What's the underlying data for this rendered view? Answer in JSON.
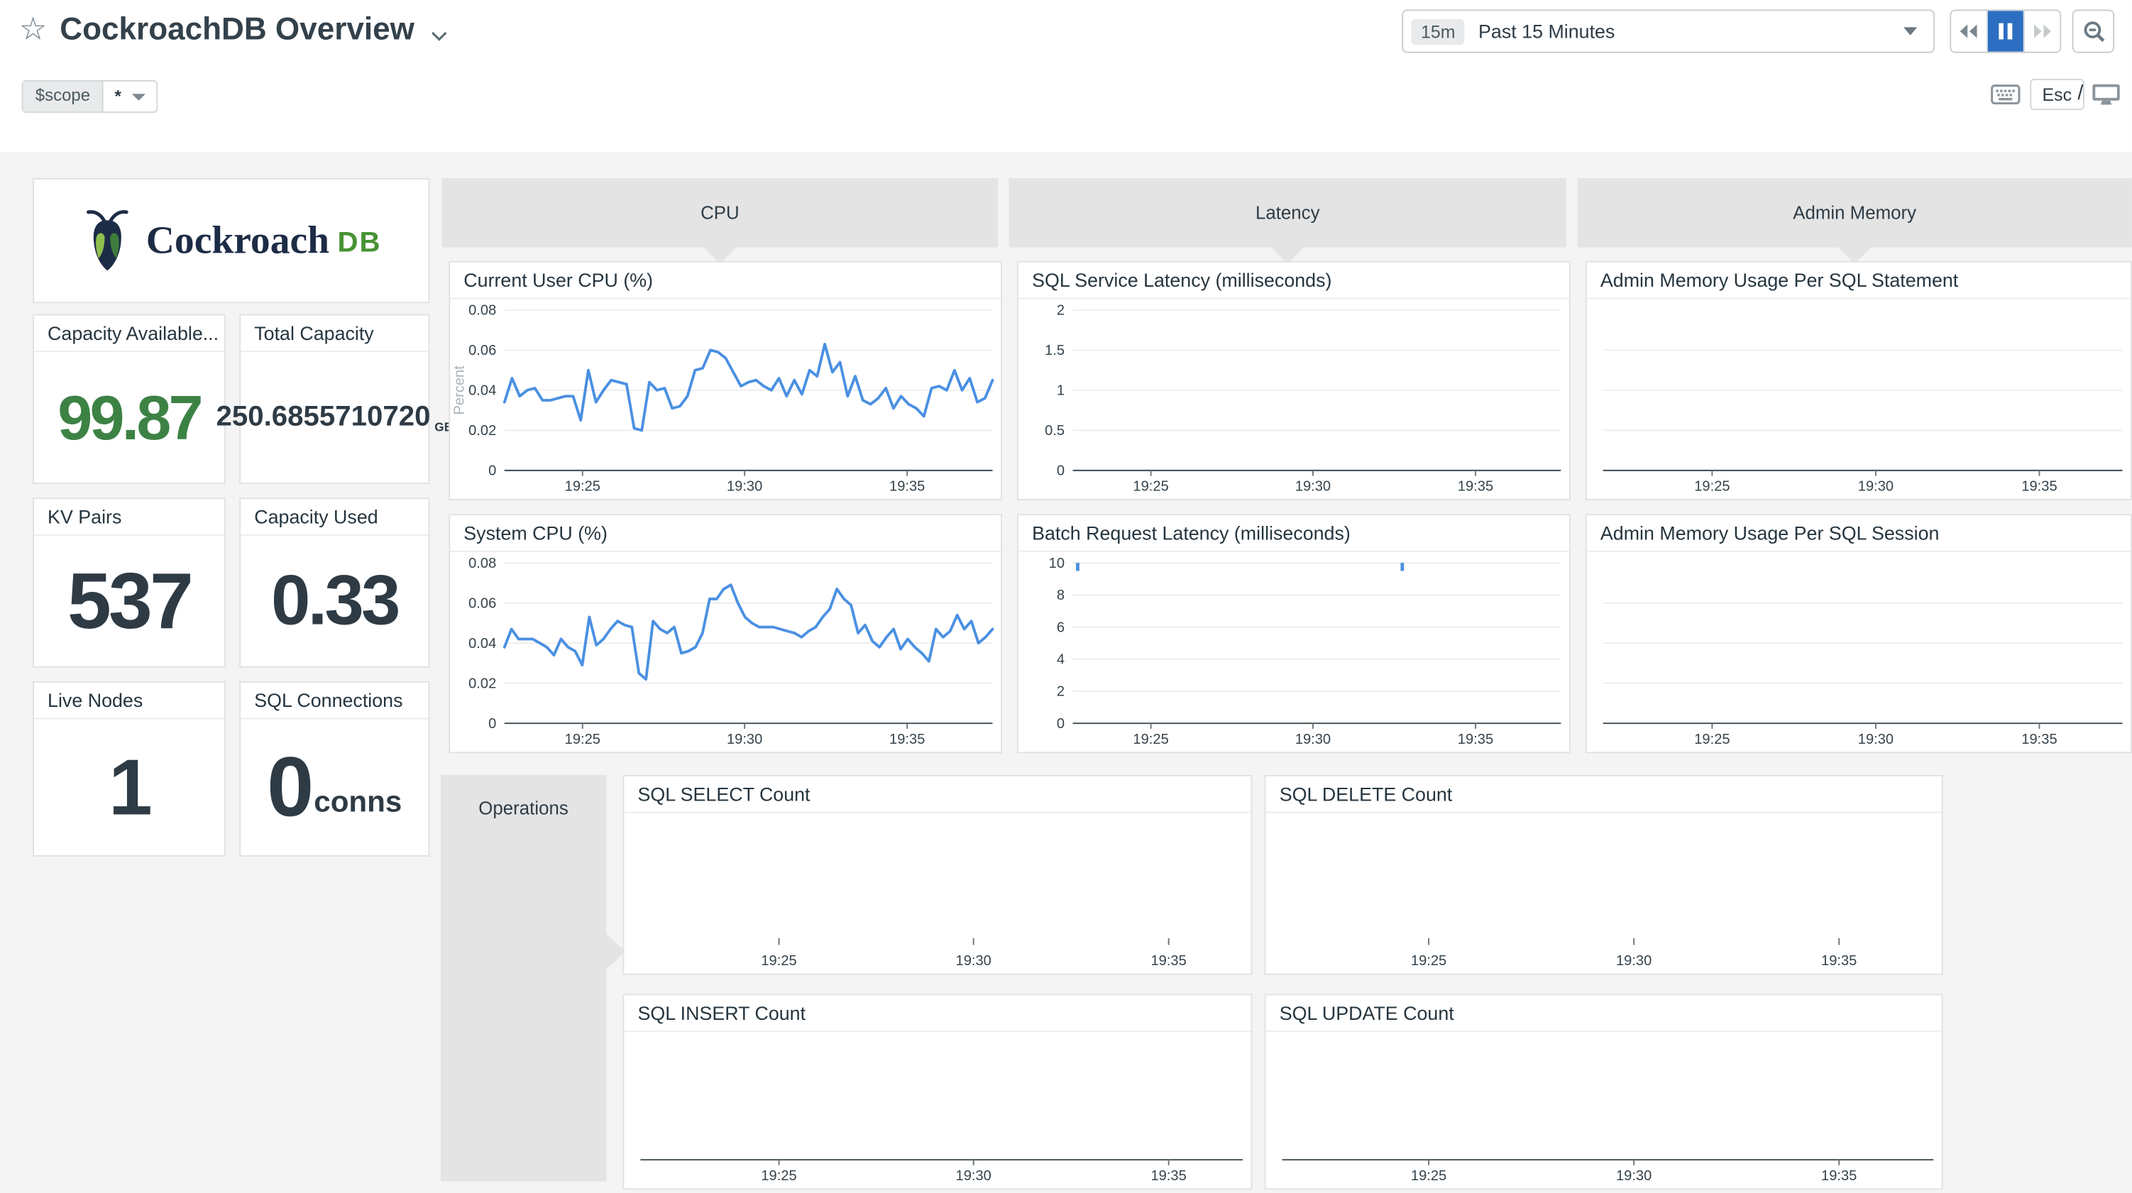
{
  "header": {
    "title": "CockroachDB Overview",
    "time_badge": "15m",
    "time_label": "Past 15 Minutes",
    "esc_key": "Esc",
    "slash": "/"
  },
  "scope": {
    "name": "$scope",
    "value": "*"
  },
  "logo": {
    "word": "Cockroach",
    "db": "DB"
  },
  "groups": {
    "cpu": "CPU",
    "latency": "Latency",
    "admin_memory": "Admin Memory",
    "operations": "Operations"
  },
  "cards": {
    "capacity_available": {
      "title": "Capacity Available...",
      "value": "99.87"
    },
    "total_capacity": {
      "title": "Total Capacity",
      "value": "250.6855710720",
      "unit": "GB"
    },
    "kv_pairs": {
      "title": "KV Pairs",
      "value": "537"
    },
    "capacity_used": {
      "title": "Capacity Used",
      "value": "0.33"
    },
    "live_nodes": {
      "title": "Live Nodes",
      "value": "1"
    },
    "sql_connections": {
      "title": "SQL Connections",
      "value": "0",
      "unit": "conns"
    }
  },
  "colors": {
    "line_blue": "#4a90e2",
    "accent_green": "#3d8245",
    "pause_blue": "#2c6fc2"
  },
  "chart_data": {
    "current_user_cpu": {
      "type": "line",
      "title": "Current User CPU (%)",
      "ylabel": "Percent",
      "ymax": 0.08,
      "yticks": [
        "0.08",
        "0.06",
        "0.04",
        "0.02",
        "0"
      ],
      "xticks": [
        "19:25",
        "19:30",
        "19:35"
      ],
      "xfracs": [
        0.16,
        0.492,
        0.825
      ],
      "baseline": true,
      "color": "#4a90e2",
      "values": [
        0.034,
        0.046,
        0.037,
        0.04,
        0.041,
        0.035,
        0.035,
        0.036,
        0.037,
        0.037,
        0.025,
        0.05,
        0.034,
        0.04,
        0.045,
        0.044,
        0.043,
        0.021,
        0.02,
        0.044,
        0.04,
        0.041,
        0.031,
        0.032,
        0.037,
        0.05,
        0.051,
        0.06,
        0.059,
        0.056,
        0.049,
        0.042,
        0.044,
        0.045,
        0.042,
        0.04,
        0.046,
        0.037,
        0.045,
        0.038,
        0.05,
        0.047,
        0.063,
        0.049,
        0.054,
        0.037,
        0.047,
        0.035,
        0.033,
        0.036,
        0.041,
        0.031,
        0.037,
        0.033,
        0.031,
        0.027,
        0.041,
        0.042,
        0.04,
        0.05,
        0.04,
        0.046,
        0.034,
        0.036,
        0.045
      ]
    },
    "system_cpu": {
      "type": "line",
      "title": "System CPU (%)",
      "ymax": 0.08,
      "yticks": [
        "0.08",
        "0.06",
        "0.04",
        "0.02",
        "0"
      ],
      "xticks": [
        "19:25",
        "19:30",
        "19:35"
      ],
      "xfracs": [
        0.16,
        0.492,
        0.825
      ],
      "baseline": true,
      "color": "#4a90e2",
      "values": [
        0.038,
        0.047,
        0.042,
        0.042,
        0.042,
        0.04,
        0.038,
        0.034,
        0.042,
        0.038,
        0.036,
        0.029,
        0.053,
        0.039,
        0.042,
        0.047,
        0.051,
        0.049,
        0.048,
        0.025,
        0.022,
        0.051,
        0.047,
        0.045,
        0.048,
        0.035,
        0.036,
        0.038,
        0.045,
        0.062,
        0.062,
        0.067,
        0.069,
        0.06,
        0.053,
        0.05,
        0.048,
        0.048,
        0.048,
        0.047,
        0.046,
        0.045,
        0.043,
        0.046,
        0.048,
        0.053,
        0.057,
        0.067,
        0.062,
        0.059,
        0.045,
        0.049,
        0.041,
        0.038,
        0.043,
        0.047,
        0.037,
        0.042,
        0.038,
        0.035,
        0.031,
        0.047,
        0.043,
        0.046,
        0.054,
        0.047,
        0.051,
        0.04,
        0.043,
        0.047
      ]
    },
    "sql_service_latency": {
      "type": "line",
      "title": "SQL Service Latency (milliseconds)",
      "ymax": 2,
      "yticks": [
        "2",
        "1.5",
        "1",
        "0.5",
        "0"
      ],
      "xticks": [
        "19:25",
        "19:30",
        "19:35"
      ],
      "xfracs": [
        0.16,
        0.492,
        0.825
      ],
      "baseline": true,
      "color": "#4a90e2",
      "values": []
    },
    "batch_request_latency": {
      "type": "line",
      "title": "Batch Request Latency (milliseconds)",
      "ymax": 10,
      "yticks": [
        "10",
        "8",
        "6",
        "4",
        "2",
        "0"
      ],
      "xticks": [
        "19:25",
        "19:30",
        "19:35"
      ],
      "xfracs": [
        0.16,
        0.492,
        0.825
      ],
      "baseline": true,
      "color": "#4a90e2",
      "values": [],
      "spikes": [
        [
          0.01,
          10,
          9.5
        ],
        [
          0.675,
          10,
          9.5
        ]
      ]
    },
    "admin_mem_statement": {
      "type": "empty",
      "title": "Admin Memory Usage Per SQL Statement",
      "gridlines": 3,
      "baseline": true,
      "xticks": [
        "19:25",
        "19:30",
        "19:35"
      ],
      "xfracs": [
        0.21,
        0.525,
        0.84
      ]
    },
    "admin_mem_session": {
      "type": "empty",
      "title": "Admin Memory Usage Per SQL Session",
      "gridlines": 3,
      "baseline": true,
      "xticks": [
        "19:25",
        "19:30",
        "19:35"
      ],
      "xfracs": [
        0.21,
        0.525,
        0.84
      ]
    },
    "sql_select": {
      "type": "empty",
      "title": "SQL SELECT Count",
      "baseline": false,
      "xticks": [
        "19:25",
        "19:30",
        "19:35"
      ],
      "xfracs": [
        0.23,
        0.553,
        0.877
      ]
    },
    "sql_delete": {
      "type": "empty",
      "title": "SQL DELETE Count",
      "baseline": false,
      "xticks": [
        "19:25",
        "19:30",
        "19:35"
      ],
      "xfracs": [
        0.225,
        0.54,
        0.855
      ]
    },
    "sql_insert": {
      "type": "empty",
      "title": "SQL INSERT Count",
      "baseline": true,
      "xticks": [
        "19:25",
        "19:30",
        "19:35"
      ],
      "xfracs": [
        0.23,
        0.553,
        0.877
      ]
    },
    "sql_update": {
      "type": "empty",
      "title": "SQL UPDATE Count",
      "baseline": true,
      "xticks": [
        "19:25",
        "19:30",
        "19:35"
      ],
      "xfracs": [
        0.225,
        0.54,
        0.855
      ]
    }
  }
}
